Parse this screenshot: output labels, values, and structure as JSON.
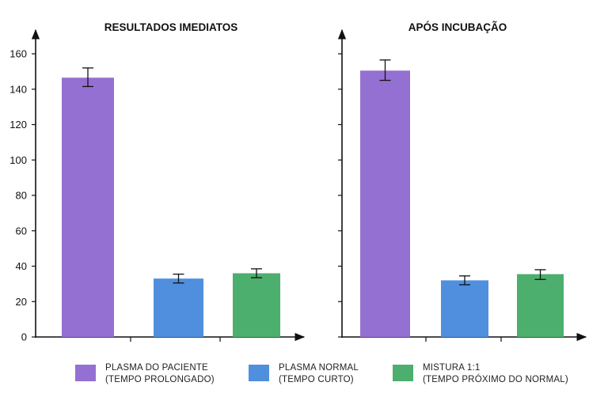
{
  "chart_data": {
    "type": "bar",
    "yticks": [
      0,
      20,
      40,
      60,
      80,
      100,
      120,
      140,
      160
    ],
    "ylim": [
      0,
      160
    ],
    "legend_position": "bottom",
    "grid": false,
    "colors": {
      "patient": "#9570d3",
      "normal": "#4f8fde",
      "mix": "#4caf6e"
    },
    "panels": [
      {
        "title": "RESULTADOS IMEDIATOS",
        "series": [
          {
            "key": "patient",
            "value": 146.5,
            "err_low": 141.5,
            "err_high": 152
          },
          {
            "key": "normal",
            "value": 33,
            "err_low": 30.5,
            "err_high": 35.5
          },
          {
            "key": "mix",
            "value": 36,
            "err_low": 33.5,
            "err_high": 38.5
          }
        ]
      },
      {
        "title": "APÓS INCUBAÇÃO",
        "series": [
          {
            "key": "patient",
            "value": 150.5,
            "err_low": 145,
            "err_high": 156.5
          },
          {
            "key": "normal",
            "value": 32,
            "err_low": 29.5,
            "err_high": 34.5
          },
          {
            "key": "mix",
            "value": 35.5,
            "err_low": 32.5,
            "err_high": 38
          }
        ]
      }
    ]
  },
  "legend": {
    "items": [
      {
        "key": "patient",
        "line1": "PLASMA DO PACIENTE",
        "line2": "(TEMPO PROLONGADO)"
      },
      {
        "key": "normal",
        "line1": "PLASMA NORMAL",
        "line2": "(TEMPO CURTO)"
      },
      {
        "key": "mix",
        "line1": "MISTURA 1:1",
        "line2": "(TEMPO PRÓXIMO DO NORMAL)"
      }
    ]
  }
}
